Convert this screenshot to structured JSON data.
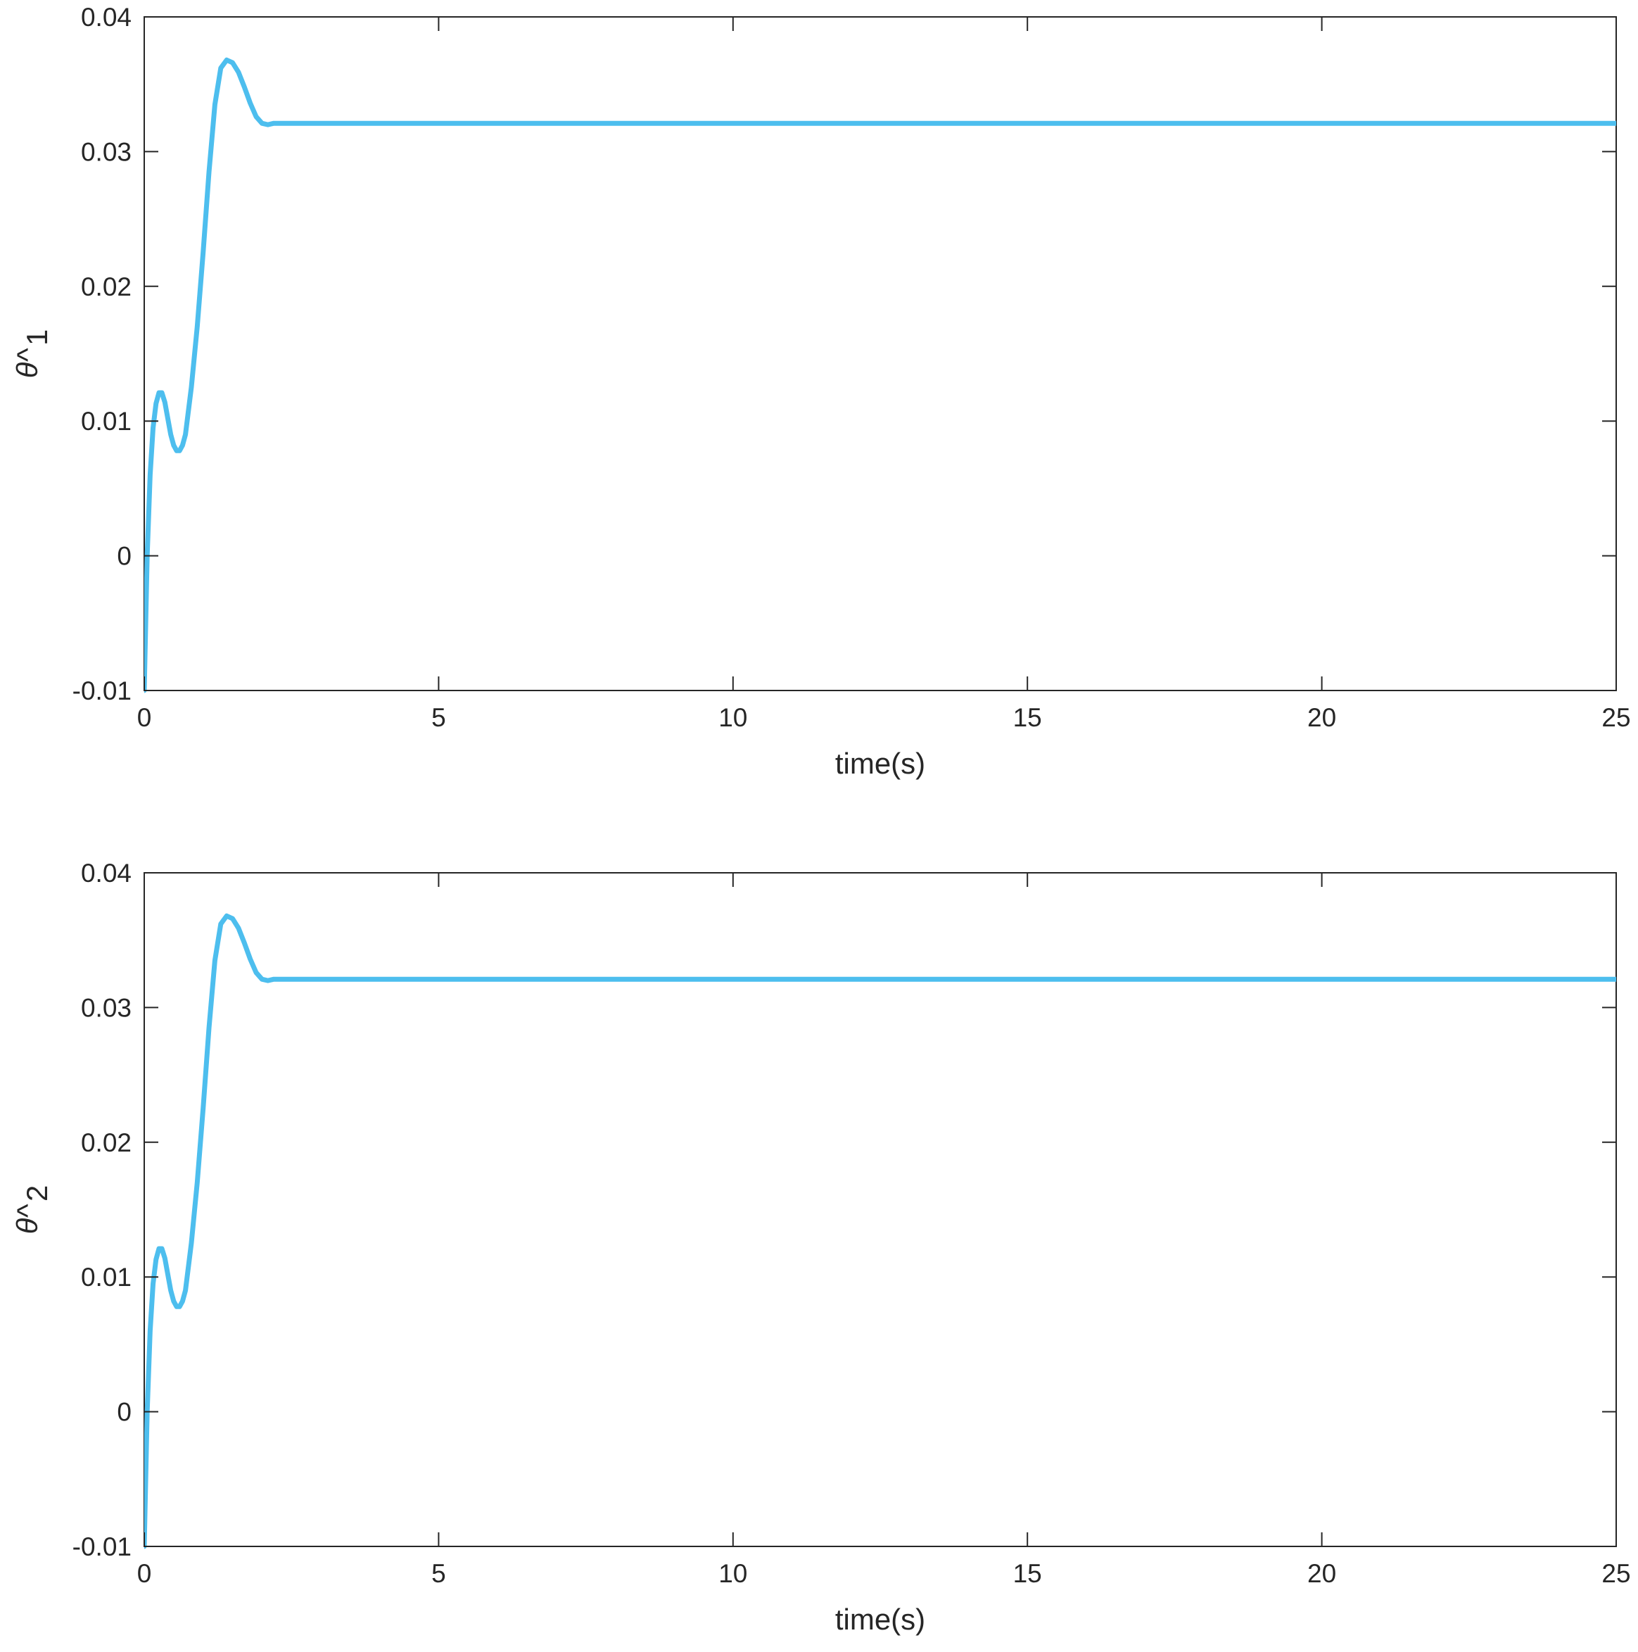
{
  "chart_data": [
    {
      "type": "line",
      "title": "",
      "xlabel": "time(s)",
      "ylabel_base": "θ^",
      "ylabel_sub": "1",
      "xlim": [
        0,
        25
      ],
      "ylim": [
        -0.01,
        0.04
      ],
      "xticks": [
        0,
        5,
        10,
        15,
        20,
        25
      ],
      "xtick_labels": [
        "0",
        "5",
        "10",
        "15",
        "20",
        "25"
      ],
      "yticks": [
        -0.01,
        0,
        0.01,
        0.02,
        0.03,
        0.04
      ],
      "ytick_labels": [
        "-0.01",
        "0",
        "0.01",
        "0.02",
        "0.03",
        "0.04"
      ],
      "grid": false,
      "series": [
        {
          "color": "#4DBEEE",
          "x": [
            0,
            0.05,
            0.1,
            0.15,
            0.2,
            0.25,
            0.3,
            0.35,
            0.4,
            0.45,
            0.5,
            0.55,
            0.6,
            0.65,
            0.7,
            0.8,
            0.9,
            1.0,
            1.1,
            1.2,
            1.3,
            1.4,
            1.5,
            1.6,
            1.7,
            1.8,
            1.9,
            2.0,
            2.1,
            2.2,
            2.3,
            3,
            5,
            10,
            15,
            20,
            25
          ],
          "y": [
            -0.01,
            0.0,
            0.006,
            0.0095,
            0.0113,
            0.0121,
            0.0121,
            0.0114,
            0.0102,
            0.009,
            0.0082,
            0.0078,
            0.0078,
            0.0082,
            0.009,
            0.0125,
            0.017,
            0.0225,
            0.0285,
            0.0335,
            0.0362,
            0.0368,
            0.0366,
            0.0359,
            0.0348,
            0.0336,
            0.0326,
            0.0321,
            0.032,
            0.0321,
            0.0321,
            0.0321,
            0.0321,
            0.0321,
            0.0321,
            0.0321,
            0.0321
          ]
        }
      ]
    },
    {
      "type": "line",
      "title": "",
      "xlabel": "time(s)",
      "ylabel_base": "θ^",
      "ylabel_sub": "2",
      "xlim": [
        0,
        25
      ],
      "ylim": [
        -0.01,
        0.04
      ],
      "xticks": [
        0,
        5,
        10,
        15,
        20,
        25
      ],
      "xtick_labels": [
        "0",
        "5",
        "10",
        "15",
        "20",
        "25"
      ],
      "yticks": [
        -0.01,
        0,
        0.01,
        0.02,
        0.03,
        0.04
      ],
      "ytick_labels": [
        "-0.01",
        "0",
        "0.01",
        "0.02",
        "0.03",
        "0.04"
      ],
      "grid": false,
      "series": [
        {
          "color": "#4DBEEE",
          "x": [
            0,
            0.05,
            0.1,
            0.15,
            0.2,
            0.25,
            0.3,
            0.35,
            0.4,
            0.45,
            0.5,
            0.55,
            0.6,
            0.65,
            0.7,
            0.8,
            0.9,
            1.0,
            1.1,
            1.2,
            1.3,
            1.4,
            1.5,
            1.6,
            1.7,
            1.8,
            1.9,
            2.0,
            2.1,
            2.2,
            2.3,
            3,
            5,
            10,
            15,
            20,
            25
          ],
          "y": [
            -0.01,
            0.0,
            0.006,
            0.0095,
            0.0113,
            0.0121,
            0.0121,
            0.0114,
            0.0102,
            0.009,
            0.0082,
            0.0078,
            0.0078,
            0.0082,
            0.009,
            0.0125,
            0.017,
            0.0225,
            0.0285,
            0.0335,
            0.0362,
            0.0368,
            0.0366,
            0.0359,
            0.0348,
            0.0336,
            0.0326,
            0.0321,
            0.032,
            0.0321,
            0.0321,
            0.0321,
            0.0321,
            0.0321,
            0.0321,
            0.0321,
            0.0321
          ]
        }
      ]
    }
  ]
}
